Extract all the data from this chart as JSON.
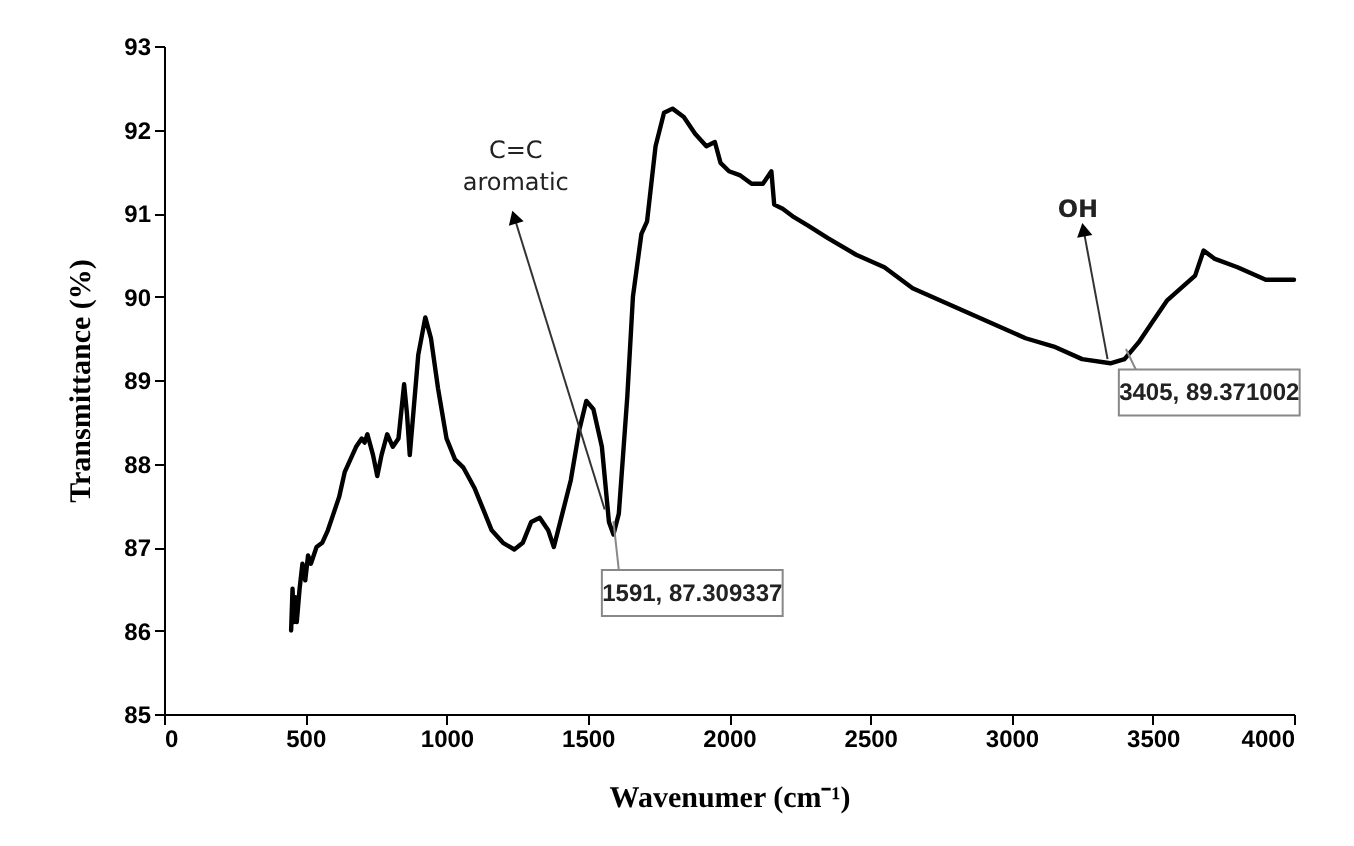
{
  "chart_data": {
    "type": "line",
    "xlabel": "Wavenumer (cm⁻¹)",
    "ylabel": "Transmittance (%)",
    "xlim": [
      0,
      4000
    ],
    "xticks": [
      0,
      500,
      1000,
      1500,
      2000,
      2500,
      3000,
      3500,
      4000
    ],
    "ylim": [
      85,
      93
    ],
    "yticks": [
      85,
      86,
      87,
      88,
      89,
      90,
      91,
      92,
      93
    ],
    "grid": false,
    "marker": "none",
    "line_style": "solid",
    "annotations": [
      "C=C aromatic",
      "OH",
      {
        "text": "1591, 87.309337",
        "x": 1591,
        "y": 87.309337
      },
      {
        "text": "3405, 89.371002",
        "x": 3405,
        "y": 89.371002
      }
    ],
    "series": [
      {
        "color": "#000000",
        "x": [
          450,
          455,
          460,
          465,
          470,
          480,
          490,
          500,
          510,
          520,
          540,
          560,
          580,
          600,
          620,
          640,
          660,
          680,
          700,
          710,
          720,
          740,
          755,
          770,
          790,
          810,
          830,
          850,
          860,
          870,
          880,
          900,
          925,
          945,
          970,
          1000,
          1030,
          1060,
          1100,
          1130,
          1160,
          1200,
          1240,
          1270,
          1300,
          1330,
          1360,
          1380,
          1410,
          1440,
          1470,
          1495,
          1520,
          1550,
          1575,
          1591,
          1610,
          1640,
          1660,
          1690,
          1710,
          1740,
          1770,
          1800,
          1840,
          1880,
          1920,
          1950,
          1970,
          2000,
          2040,
          2080,
          2120,
          2150,
          2160,
          2190,
          2230,
          2280,
          2350,
          2450,
          2550,
          2650,
          2750,
          2850,
          2950,
          3050,
          3150,
          3250,
          3350,
          3400,
          3450,
          3500,
          3550,
          3600,
          3650,
          3680,
          3720,
          3800,
          3900,
          4000
        ],
        "values": [
          86.0,
          86.5,
          86.1,
          86.4,
          86.1,
          86.5,
          86.8,
          86.6,
          86.9,
          86.8,
          87.0,
          87.05,
          87.2,
          87.4,
          87.6,
          87.9,
          88.05,
          88.2,
          88.3,
          88.25,
          88.35,
          88.1,
          87.85,
          88.1,
          88.35,
          88.2,
          88.3,
          88.95,
          88.6,
          88.1,
          88.5,
          89.3,
          89.75,
          89.5,
          88.9,
          88.3,
          88.05,
          87.95,
          87.7,
          87.45,
          87.2,
          87.05,
          86.97,
          87.05,
          87.3,
          87.35,
          87.2,
          87.0,
          87.4,
          87.8,
          88.4,
          88.75,
          88.65,
          88.2,
          87.3,
          87.15,
          87.4,
          88.8,
          90.0,
          90.75,
          90.9,
          91.8,
          92.2,
          92.25,
          92.15,
          91.95,
          91.8,
          91.85,
          91.6,
          91.5,
          91.45,
          91.35,
          91.35,
          91.5,
          91.1,
          91.05,
          90.95,
          90.85,
          90.7,
          90.5,
          90.35,
          90.1,
          89.95,
          89.8,
          89.65,
          89.5,
          89.4,
          89.25,
          89.2,
          89.25,
          89.45,
          89.7,
          89.95,
          90.1,
          90.25,
          90.55,
          90.45,
          90.35,
          90.2,
          90.2
        ]
      }
    ]
  }
}
